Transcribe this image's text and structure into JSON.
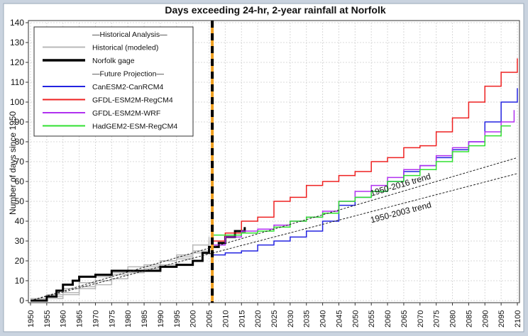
{
  "chart_data": {
    "type": "line",
    "title": "Days exceeding 24-hr, 2-year rainfall at Norfolk",
    "ylabel": "Number of days since 1950",
    "xlim": [
      1950,
      2100
    ],
    "ylim": [
      0,
      140
    ],
    "xticks": [
      1950,
      1955,
      1960,
      1965,
      1970,
      1975,
      1980,
      1985,
      1990,
      1995,
      2000,
      2005,
      2010,
      2015,
      2020,
      2025,
      2030,
      2035,
      2040,
      2045,
      2050,
      2055,
      2060,
      2065,
      2070,
      2075,
      2080,
      2085,
      2090,
      2095,
      2100
    ],
    "yticks": [
      0,
      10,
      20,
      30,
      40,
      50,
      60,
      70,
      80,
      90,
      100,
      110,
      120,
      130,
      140
    ],
    "grid": true,
    "legend": "top-left",
    "vline": 2006,
    "legend_headers": [
      "—Historical Analysis—",
      "—Future Projection—"
    ],
    "series": [
      {
        "name": "Historical (modeled)",
        "section": 0,
        "color": "#b8b8b8",
        "width": 1.5,
        "x": [
          1950,
          1955,
          1960,
          1965,
          1970,
          1975,
          1980,
          1985,
          1990,
          1995,
          2000,
          2005
        ],
        "values": [
          0,
          3,
          6,
          9,
          12,
          14,
          17,
          18,
          20,
          23,
          28,
          32
        ]
      },
      {
        "name": "Historical (modeled)",
        "section": 0,
        "color": "#b8b8b8",
        "width": 1.5,
        "x": [
          1950,
          1955,
          1960,
          1965,
          1970,
          1975,
          1980,
          1985,
          1990,
          1995,
          2000,
          2005
        ],
        "values": [
          1,
          2,
          4,
          7,
          10,
          13,
          15,
          17,
          20,
          22,
          25,
          30
        ]
      },
      {
        "name": "Historical (modeled)",
        "section": 0,
        "color": "#b8b8b8",
        "width": 1.5,
        "x": [
          1950,
          1955,
          1960,
          1965,
          1970,
          1975,
          1980,
          1985,
          1990,
          1995,
          2000,
          2005
        ],
        "values": [
          0,
          1,
          3,
          6,
          8,
          11,
          14,
          16,
          18,
          21,
          24,
          27
        ]
      },
      {
        "name": "Norfolk gage",
        "section": 0,
        "color": "#000000",
        "width": 3,
        "x": [
          1950,
          1955,
          1958,
          1960,
          1963,
          1965,
          1970,
          1975,
          1980,
          1985,
          1990,
          1995,
          2000,
          2003,
          2005,
          2008,
          2010,
          2013,
          2016
        ],
        "values": [
          0,
          2,
          5,
          8,
          10,
          12,
          13,
          15,
          15,
          15,
          17,
          18,
          20,
          24,
          27,
          29,
          32,
          35,
          37
        ]
      },
      {
        "name": "CanESM2-CanRCM4",
        "section": 1,
        "color": "#2323e0",
        "width": 1.5,
        "x": [
          2006,
          2010,
          2015,
          2020,
          2025,
          2030,
          2035,
          2040,
          2045,
          2050,
          2055,
          2060,
          2065,
          2070,
          2075,
          2080,
          2085,
          2090,
          2095,
          2100
        ],
        "values": [
          23,
          24,
          25,
          28,
          30,
          32,
          35,
          40,
          48,
          52,
          55,
          60,
          65,
          68,
          72,
          76,
          80,
          90,
          100,
          107
        ]
      },
      {
        "name": "GFDL-ESM2M-RegCM4",
        "section": 1,
        "color": "#ee2020",
        "width": 1.5,
        "x": [
          2006,
          2010,
          2015,
          2020,
          2025,
          2030,
          2035,
          2040,
          2045,
          2050,
          2055,
          2060,
          2065,
          2070,
          2075,
          2080,
          2085,
          2090,
          2095,
          2100
        ],
        "values": [
          30,
          34,
          40,
          42,
          50,
          52,
          58,
          60,
          63,
          65,
          70,
          72,
          77,
          78,
          85,
          92,
          100,
          108,
          115,
          122
        ]
      },
      {
        "name": "GFDL-ESM2M-WRF",
        "section": 1,
        "color": "#b030f0",
        "width": 1.5,
        "x": [
          2006,
          2010,
          2015,
          2020,
          2025,
          2030,
          2035,
          2040,
          2045,
          2050,
          2055,
          2060,
          2065,
          2070,
          2075,
          2080,
          2085,
          2090,
          2095,
          2099
        ],
        "values": [
          28,
          32,
          35,
          36,
          38,
          40,
          42,
          45,
          50,
          55,
          58,
          62,
          66,
          68,
          73,
          77,
          80,
          85,
          90,
          96
        ]
      },
      {
        "name": "HadGEM2-ESM-RegCM4",
        "section": 1,
        "color": "#30e030",
        "width": 1.5,
        "x": [
          2006,
          2010,
          2015,
          2020,
          2025,
          2030,
          2035,
          2040,
          2045,
          2050,
          2055,
          2060,
          2065,
          2070,
          2075,
          2080,
          2085,
          2090,
          2095,
          2098
        ],
        "values": [
          33,
          33,
          34,
          35,
          37,
          40,
          42,
          44,
          50,
          52,
          55,
          60,
          63,
          66,
          70,
          75,
          78,
          83,
          88,
          88
        ]
      }
    ],
    "trends": [
      {
        "name": "1950-2016 trend",
        "x": [
          1950,
          2100
        ],
        "values": [
          0,
          72
        ]
      },
      {
        "name": "1950-2003 trend",
        "x": [
          1950,
          2100
        ],
        "values": [
          0,
          64
        ]
      }
    ]
  }
}
